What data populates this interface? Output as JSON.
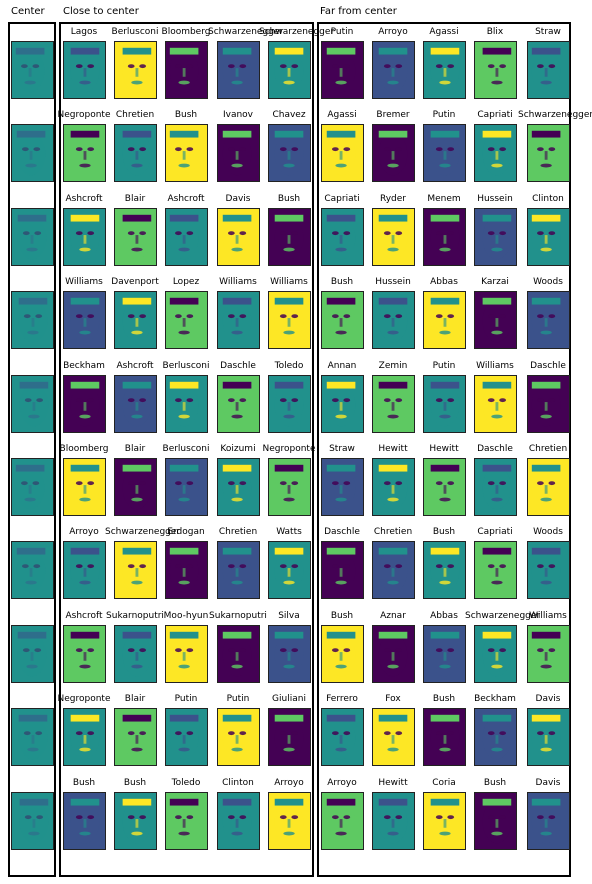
{
  "sections": {
    "center_title": "Center",
    "close_title": "Close to center",
    "far_title": "Far from center"
  },
  "close_rows": [
    [
      "Lagos",
      "Berlusconi",
      "Bloomberg",
      "Schwarzenegger",
      "Schwarzenegger"
    ],
    [
      "Negroponte",
      "Chretien",
      "Bush",
      "Ivanov",
      "Chavez"
    ],
    [
      "Ashcroft",
      "Blair",
      "Ashcroft",
      "Davis",
      "Bush"
    ],
    [
      "Williams",
      "Davenport",
      "Lopez",
      "Williams",
      "Williams"
    ],
    [
      "Beckham",
      "Ashcroft",
      "Berlusconi",
      "Daschle",
      "Toledo"
    ],
    [
      "Bloomberg",
      "Blair",
      "Berlusconi",
      "Koizumi",
      "Negroponte"
    ],
    [
      "Arroyo",
      "Schwarzenegger",
      "Erdogan",
      "Chretien",
      "Watts"
    ],
    [
      "Ashcroft",
      "Sukarnoputri",
      "Moo-hyun",
      "Sukarnoputri",
      "Silva"
    ],
    [
      "Negroponte",
      "Blair",
      "Putin",
      "Putin",
      "Giuliani"
    ],
    [
      "Bush",
      "Bush",
      "Toledo",
      "Clinton",
      "Arroyo"
    ]
  ],
  "far_rows": [
    [
      "Putin",
      "Arroyo",
      "Agassi",
      "Blix",
      "Straw"
    ],
    [
      "Agassi",
      "Bremer",
      "Putin",
      "Capriati",
      "Schwarzenegger"
    ],
    [
      "Capriati",
      "Ryder",
      "Menem",
      "Hussein",
      "Clinton"
    ],
    [
      "Bush",
      "Hussein",
      "Abbas",
      "Karzai",
      "Woods"
    ],
    [
      "Annan",
      "Zemin",
      "Putin",
      "Williams",
      "Daschle"
    ],
    [
      "Straw",
      "Hewitt",
      "Hewitt",
      "Daschle",
      "Chretien"
    ],
    [
      "Daschle",
      "Chretien",
      "Bush",
      "Capriati",
      "Woods"
    ],
    [
      "Bush",
      "Aznar",
      "Abbas",
      "Schwarzenegger",
      "Williams"
    ],
    [
      "Ferrero",
      "Fox",
      "Bush",
      "Beckham",
      "Davis"
    ],
    [
      "Arroyo",
      "Hewitt",
      "Coria",
      "Bush",
      "Davis"
    ]
  ],
  "colors": {
    "viridis_dark": "#440154",
    "viridis_blue": "#3b528b",
    "viridis_teal": "#21918c",
    "viridis_green": "#5ec962",
    "viridis_yellow": "#fde725",
    "frame": "#000000"
  }
}
